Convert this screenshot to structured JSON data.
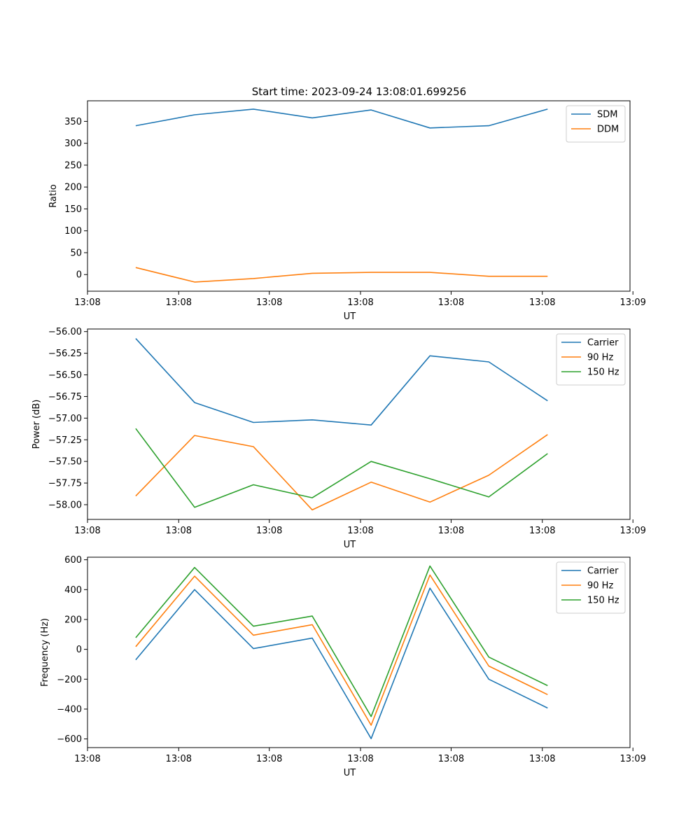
{
  "title": "Start time: 2023-09-24 13:08:01.699256",
  "colors": {
    "blue": "#1f77b4",
    "orange": "#ff7f0e",
    "green": "#2ca02c"
  },
  "chart_data": [
    {
      "type": "line",
      "title": "Start time: 2023-09-24 13:08:01.699256",
      "xlabel": "UT",
      "ylabel": "Ratio",
      "x": [
        1,
        2,
        3,
        4,
        5,
        6,
        7,
        8
      ],
      "xlim": [
        0.18,
        9.4
      ],
      "ylim": [
        -38,
        397
      ],
      "xticks": [
        0.18,
        1.73,
        3.27,
        4.82,
        6.36,
        7.91,
        9.45
      ],
      "xtick_labels": [
        "13:08",
        "13:08",
        "13:08",
        "13:08",
        "13:08",
        "13:08",
        "13:09"
      ],
      "yticks": [
        0,
        50,
        100,
        150,
        200,
        250,
        300,
        350
      ],
      "ytick_labels": [
        "0",
        "50",
        "100",
        "150",
        "200",
        "250",
        "300",
        "350"
      ],
      "legend": "top-right",
      "series": [
        {
          "name": "SDM",
          "color": "#1f77b4",
          "values": [
            340,
            365,
            378,
            358,
            376,
            335,
            340,
            378
          ]
        },
        {
          "name": "DDM",
          "color": "#ff7f0e",
          "values": [
            16,
            -17,
            -9,
            3,
            5,
            5,
            -4,
            -4
          ]
        }
      ]
    },
    {
      "type": "line",
      "xlabel": "UT",
      "ylabel": "Power (dB)",
      "x": [
        1,
        2,
        3,
        4,
        5,
        6,
        7,
        8
      ],
      "xlim": [
        0.18,
        9.4
      ],
      "ylim": [
        -58.17,
        -55.97
      ],
      "xticks": [
        0.18,
        1.73,
        3.27,
        4.82,
        6.36,
        7.91,
        9.45
      ],
      "xtick_labels": [
        "13:08",
        "13:08",
        "13:08",
        "13:08",
        "13:08",
        "13:08",
        "13:09"
      ],
      "yticks": [
        -58.0,
        -57.75,
        -57.5,
        -57.25,
        -57.0,
        -56.75,
        -56.5,
        -56.25,
        -56.0
      ],
      "ytick_labels": [
        "−58.00",
        "−57.75",
        "−57.50",
        "−57.25",
        "−57.00",
        "−56.75",
        "−56.50",
        "−56.25",
        "−56.00"
      ],
      "legend": "top-right",
      "series": [
        {
          "name": "Carrier",
          "color": "#1f77b4",
          "values": [
            -56.08,
            -56.82,
            -57.05,
            -57.02,
            -57.08,
            -56.28,
            -56.35,
            -56.8
          ]
        },
        {
          "name": "90 Hz",
          "color": "#ff7f0e",
          "values": [
            -57.9,
            -57.2,
            -57.33,
            -58.06,
            -57.74,
            -57.97,
            -57.66,
            -57.19
          ]
        },
        {
          "name": "150 Hz",
          "color": "#2ca02c",
          "values": [
            -57.12,
            -58.03,
            -57.77,
            -57.92,
            -57.5,
            -57.7,
            -57.91,
            -57.41
          ]
        }
      ]
    },
    {
      "type": "line",
      "xlabel": "UT",
      "ylabel": "Frequency (Hz)",
      "x": [
        1,
        2,
        3,
        4,
        5,
        6,
        7,
        8
      ],
      "xlim": [
        0.18,
        9.4
      ],
      "ylim": [
        -658,
        617
      ],
      "xticks": [
        0.18,
        1.73,
        3.27,
        4.82,
        6.36,
        7.91,
        9.45
      ],
      "xtick_labels": [
        "13:08",
        "13:08",
        "13:08",
        "13:08",
        "13:08",
        "13:08",
        "13:09"
      ],
      "yticks": [
        -600,
        -400,
        -200,
        0,
        200,
        400,
        600
      ],
      "ytick_labels": [
        "−600",
        "−400",
        "−200",
        "0",
        "200",
        "400",
        "600"
      ],
      "legend": "top-right",
      "series": [
        {
          "name": "Carrier",
          "color": "#1f77b4",
          "values": [
            -70,
            400,
            5,
            75,
            -598,
            410,
            -200,
            -393
          ]
        },
        {
          "name": "90 Hz",
          "color": "#ff7f0e",
          "values": [
            18,
            490,
            95,
            165,
            -508,
            498,
            -112,
            -303
          ]
        },
        {
          "name": "150 Hz",
          "color": "#2ca02c",
          "values": [
            78,
            548,
            155,
            223,
            -450,
            558,
            -52,
            -243
          ]
        }
      ]
    }
  ]
}
